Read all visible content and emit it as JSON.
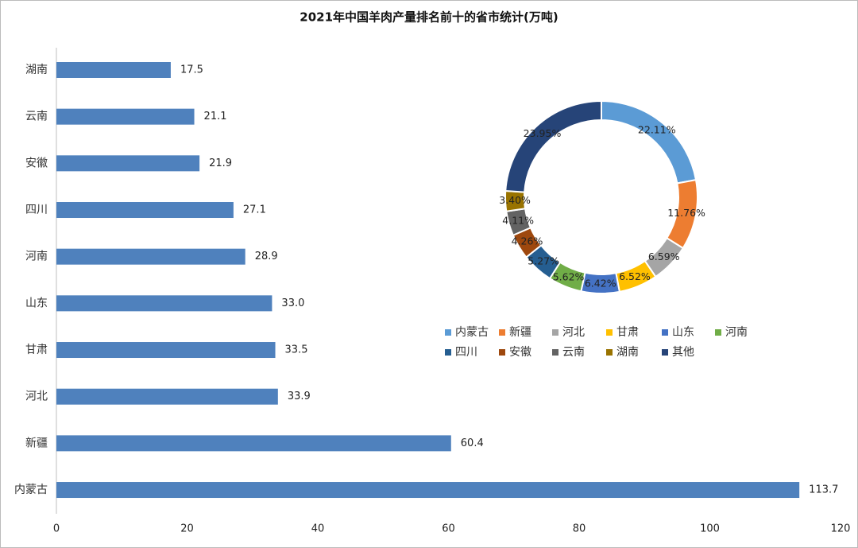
{
  "chart_data": [
    {
      "type": "bar",
      "orientation": "horizontal",
      "title": "2021年中国羊肉产量排名前十的省市统计(万吨)",
      "categories": [
        "湖南",
        "云南",
        "安徽",
        "四川",
        "河南",
        "山东",
        "甘肃",
        "河北",
        "新疆",
        "内蒙古"
      ],
      "values": [
        17.5,
        21.1,
        21.9,
        27.1,
        28.9,
        33.0,
        33.5,
        33.9,
        60.4,
        113.7
      ],
      "value_labels": [
        "17.5",
        "21.1",
        "21.9",
        "27.1",
        "28.9",
        "33.0",
        "33.5",
        "33.9",
        "60.4",
        "113.7"
      ],
      "color": "#4f81bd",
      "xlim": [
        0,
        120
      ],
      "xticks": [
        0,
        20,
        40,
        60,
        80,
        100,
        120
      ],
      "grid": false
    },
    {
      "type": "donut",
      "categories": [
        "内蒙古",
        "新疆",
        "河北",
        "甘肃",
        "山东",
        "河南",
        "四川",
        "安徽",
        "云南",
        "湖南",
        "其他"
      ],
      "values": [
        22.11,
        11.76,
        6.59,
        6.52,
        6.42,
        5.62,
        5.27,
        4.26,
        4.11,
        3.4,
        23.95
      ],
      "value_labels": [
        "22.11%",
        "11.76%",
        "6.59%",
        "6.52%",
        "6.42%",
        "5.62%",
        "5.27%",
        "4.26%",
        "4.11%",
        "3.40%",
        "23.95%"
      ],
      "colors": [
        "#5b9bd5",
        "#ed7d31",
        "#a5a5a5",
        "#ffc000",
        "#4472c4",
        "#70ad47",
        "#255e91",
        "#9e480e",
        "#636363",
        "#997300",
        "#264478"
      ],
      "legend": "bottom"
    }
  ]
}
